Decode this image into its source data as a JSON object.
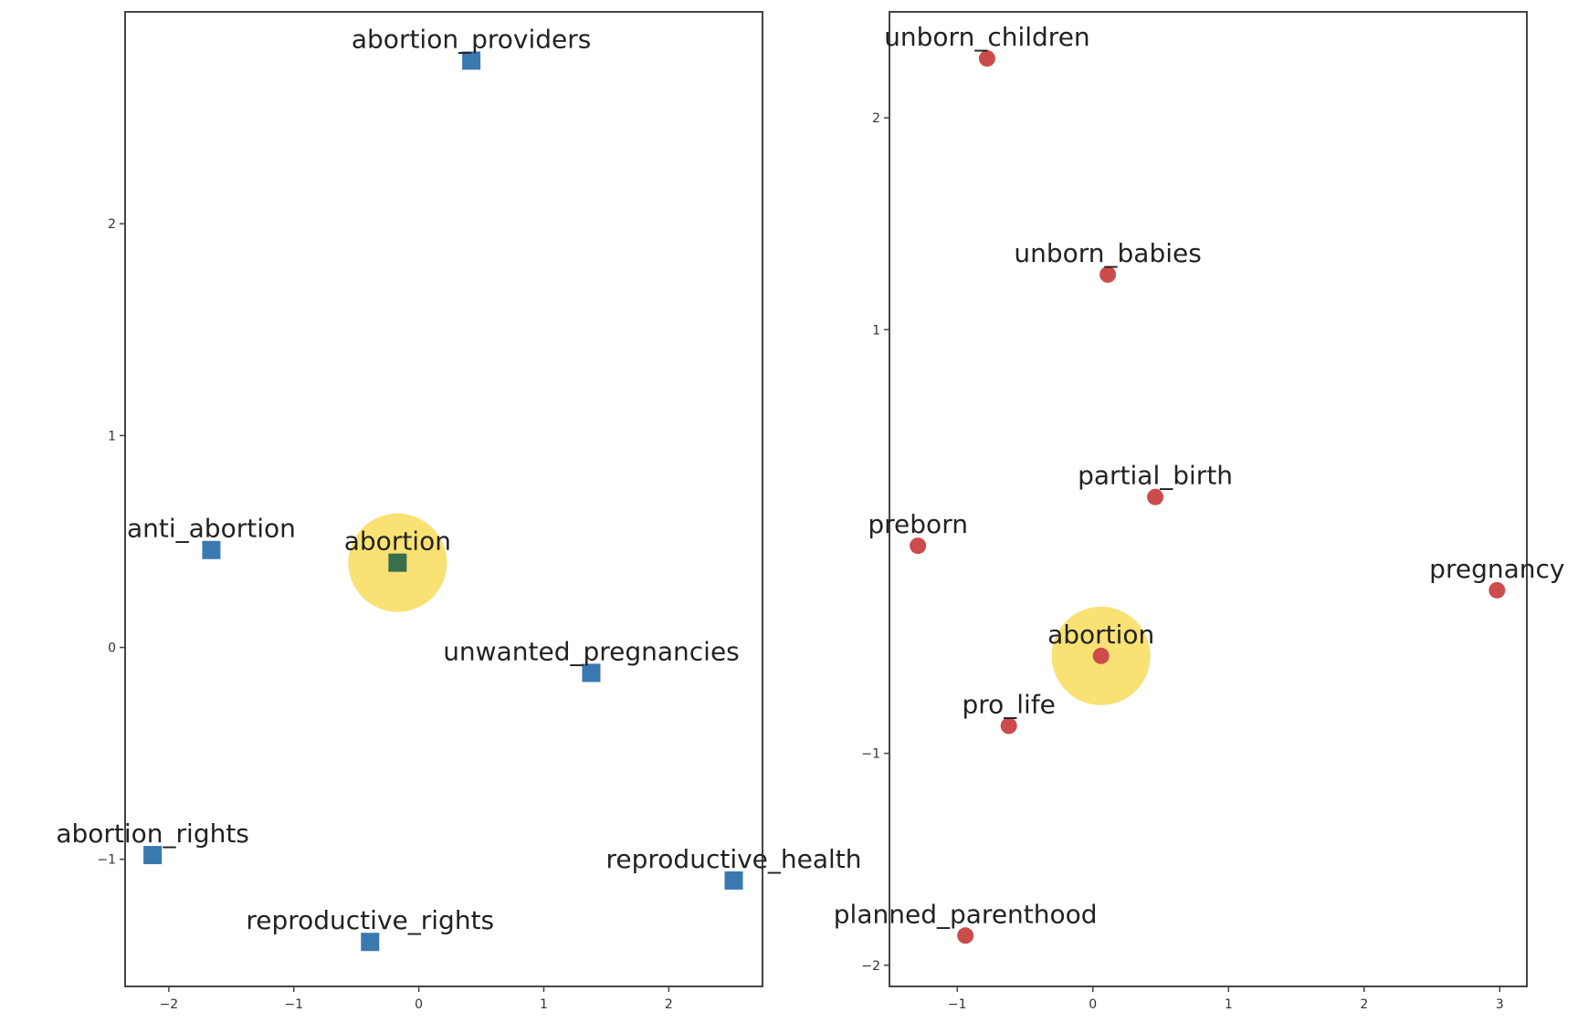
{
  "chart_data": [
    {
      "type": "scatter",
      "marker": "square",
      "color": "#3a78b0",
      "highlight_color": "#3a6f4e",
      "halo_color": "#f8dc5a",
      "xlim": [
        -2.35,
        2.75
      ],
      "ylim": [
        -1.6,
        3.0
      ],
      "xticks": [
        -2,
        -1,
        0,
        1,
        2
      ],
      "yticks": [
        -1,
        0,
        1,
        2
      ],
      "xtick_labels": [
        "−2",
        "−1",
        "0",
        "1",
        "2"
      ],
      "ytick_labels": [
        "−1",
        "0",
        "1",
        "2"
      ],
      "points": [
        {
          "label": "abortion_providers",
          "x": 0.42,
          "y": 2.77
        },
        {
          "label": "anti_abortion",
          "x": -1.66,
          "y": 0.46
        },
        {
          "label": "abortion",
          "x": -0.17,
          "y": 0.4,
          "highlight": true
        },
        {
          "label": "unwanted_pregnancies",
          "x": 1.38,
          "y": -0.12
        },
        {
          "label": "abortion_rights",
          "x": -2.13,
          "y": -0.98
        },
        {
          "label": "reproductive_health",
          "x": 2.52,
          "y": -1.1
        },
        {
          "label": "reproductive_rights",
          "x": -0.39,
          "y": -1.39
        }
      ]
    },
    {
      "type": "scatter",
      "marker": "circle",
      "color": "#cc4b4b",
      "highlight_color": "#cc4b4b",
      "halo_color": "#f8dc5a",
      "xlim": [
        -1.5,
        3.2
      ],
      "ylim": [
        -2.1,
        2.5
      ],
      "xticks": [
        -1,
        0,
        1,
        2,
        3
      ],
      "yticks": [
        -2,
        -1,
        1,
        2
      ],
      "xtick_labels": [
        "−1",
        "0",
        "1",
        "2",
        "3"
      ],
      "ytick_labels": [
        "−2",
        "−1",
        "1",
        "2"
      ],
      "points": [
        {
          "label": "unborn_children",
          "x": -0.78,
          "y": 2.28
        },
        {
          "label": "unborn_babies",
          "x": 0.11,
          "y": 1.26
        },
        {
          "label": "partial_birth",
          "x": 0.46,
          "y": 0.21
        },
        {
          "label": "preborn",
          "x": -1.29,
          "y": -0.02
        },
        {
          "label": "pregnancy",
          "x": 2.98,
          "y": -0.23
        },
        {
          "label": "abortion",
          "x": 0.06,
          "y": -0.54,
          "highlight": true
        },
        {
          "label": "pro_life",
          "x": -0.62,
          "y": -0.87
        },
        {
          "label": "planned_parenthood",
          "x": -0.94,
          "y": -1.86
        }
      ]
    }
  ]
}
